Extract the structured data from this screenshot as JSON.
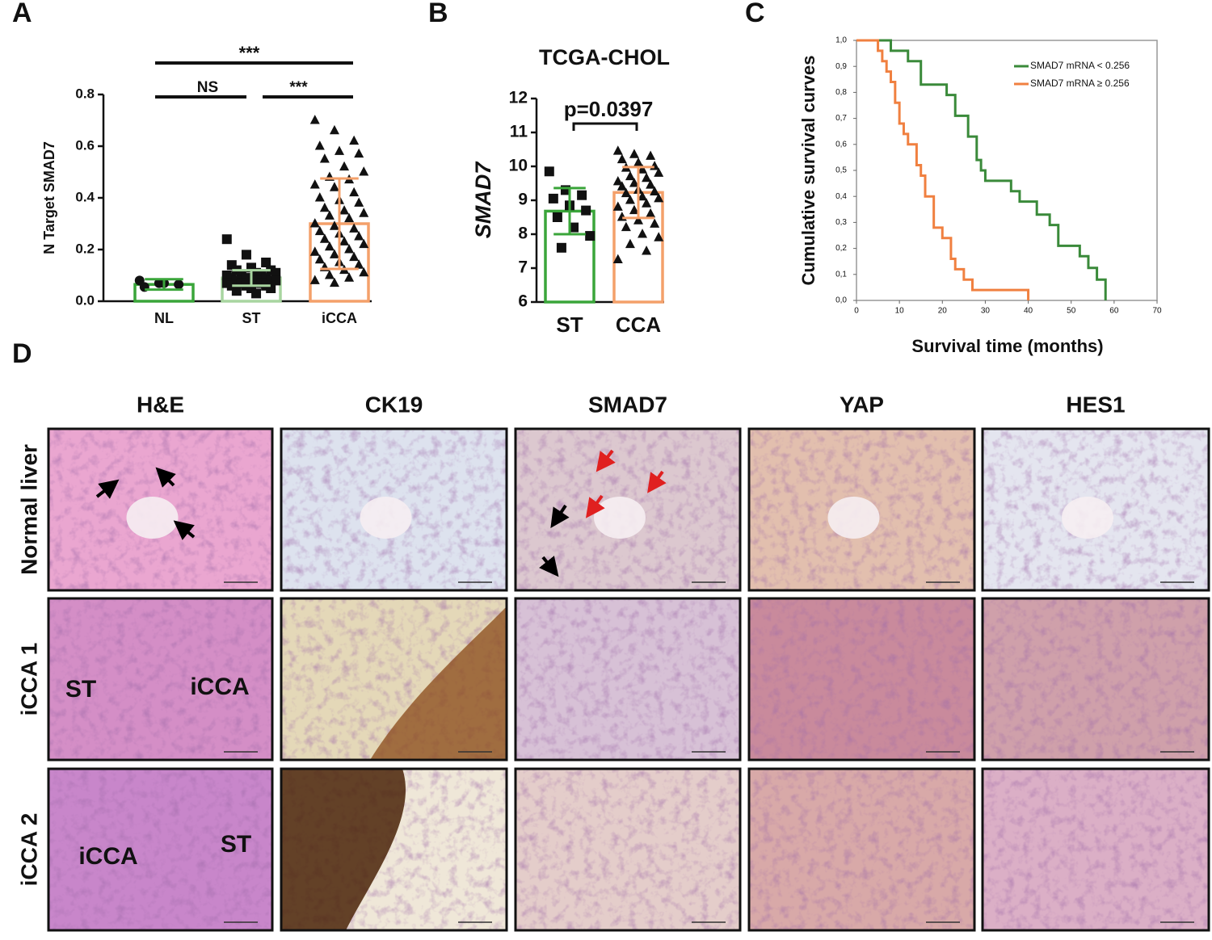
{
  "chart_data": [
    {
      "panel": "A",
      "type": "bar",
      "ylabel": "N Target SMAD7",
      "categories": [
        "NL",
        "ST",
        "iCCA"
      ],
      "values": [
        0.065,
        0.09,
        0.3
      ],
      "errors": [
        0.02,
        0.03,
        0.175
      ],
      "colors": [
        "#3aa53a",
        "#a8d5a0",
        "#f4a06a"
      ],
      "markers": [
        "circle",
        "square",
        "triangle"
      ],
      "points": [
        [
          0.08,
          0.07,
          0.065,
          0.055,
          0.07
        ],
        [
          0.24,
          0.18,
          0.15,
          0.14,
          0.13,
          0.12,
          0.12,
          0.11,
          0.11,
          0.1,
          0.1,
          0.1,
          0.09,
          0.09,
          0.09,
          0.09,
          0.08,
          0.08,
          0.08,
          0.08,
          0.07,
          0.07,
          0.07,
          0.06,
          0.06,
          0.06,
          0.05,
          0.05,
          0.04,
          0.03
        ],
        [
          0.7,
          0.66,
          0.62,
          0.6,
          0.58,
          0.57,
          0.55,
          0.52,
          0.5,
          0.48,
          0.47,
          0.45,
          0.44,
          0.42,
          0.4,
          0.39,
          0.38,
          0.36,
          0.35,
          0.34,
          0.33,
          0.32,
          0.3,
          0.29,
          0.28,
          0.27,
          0.26,
          0.25,
          0.24,
          0.23,
          0.22,
          0.21,
          0.2,
          0.19,
          0.18,
          0.17,
          0.16,
          0.15,
          0.14,
          0.13,
          0.12,
          0.11,
          0.1,
          0.09,
          0.08,
          0.07
        ]
      ],
      "ylim": [
        0,
        0.8
      ],
      "yticks": [
        {
          "value": 0,
          "label": "0.0"
        },
        0.2,
        0.4,
        0.6,
        0.8
      ],
      "annotations": [
        {
          "text": "***",
          "from": "NL",
          "to": "iCCA"
        },
        {
          "text": "NS",
          "from": "NL",
          "to": "ST"
        },
        {
          "text": "***",
          "from": "ST",
          "to": "iCCA"
        }
      ]
    },
    {
      "panel": "B",
      "type": "bar",
      "title": "TCGA-CHOL",
      "ylabel": "SMAD7",
      "categories": [
        "ST",
        "CCA"
      ],
      "values": [
        8.68,
        9.23
      ],
      "errors": [
        0.68,
        0.75
      ],
      "colors": [
        "#3aa53a",
        "#f4a06a"
      ],
      "markers": [
        "square",
        "triangle"
      ],
      "points": [
        [
          9.85,
          9.3,
          9.15,
          9.05,
          8.85,
          8.7,
          8.5,
          8.2,
          7.95,
          7.6
        ],
        [
          10.45,
          10.35,
          10.3,
          10.2,
          10.1,
          10.0,
          9.95,
          9.9,
          9.8,
          9.7,
          9.65,
          9.55,
          9.5,
          9.45,
          9.4,
          9.3,
          9.25,
          9.2,
          9.1,
          9.05,
          9.0,
          8.9,
          8.8,
          8.7,
          8.6,
          8.5,
          8.4,
          8.3,
          8.2,
          8.0,
          7.9,
          7.7,
          7.5,
          7.25
        ]
      ],
      "ylim": [
        6,
        12
      ],
      "yticks": [
        6,
        7,
        8,
        9,
        10,
        11,
        12
      ],
      "annotations": [
        {
          "text": "p=0.0397",
          "from": "ST",
          "to": "CCA"
        }
      ]
    },
    {
      "panel": "C",
      "type": "line",
      "step": true,
      "ylabel": "Cumulative survival curves",
      "xlabel": "Survival time (months)",
      "series": [
        {
          "name": "SMAD7 mRNA < 0.256",
          "color": "#3a8a3a",
          "x": [
            0,
            8,
            12,
            15,
            21,
            23,
            26,
            28,
            29,
            30,
            36,
            38,
            42,
            45,
            47,
            52,
            54,
            56,
            58
          ],
          "values": [
            1,
            0.96,
            0.92,
            0.83,
            0.79,
            0.71,
            0.63,
            0.54,
            0.5,
            0.46,
            0.42,
            0.38,
            0.33,
            0.29,
            0.21,
            0.17,
            0.125,
            0.08,
            0
          ]
        },
        {
          "name": "SMAD7 mRNA ≥ 0.256",
          "color": "#f08040",
          "x": [
            0,
            5,
            6,
            7,
            8,
            9,
            10,
            11,
            12,
            14,
            15,
            16,
            18,
            20,
            22,
            23,
            25,
            27,
            40
          ],
          "values": [
            1,
            0.96,
            0.92,
            0.88,
            0.84,
            0.76,
            0.68,
            0.64,
            0.6,
            0.52,
            0.48,
            0.4,
            0.28,
            0.24,
            0.16,
            0.12,
            0.08,
            0.04,
            0
          ]
        }
      ],
      "xlim": [
        0,
        70
      ],
      "xticks": [
        0,
        10,
        20,
        30,
        40,
        50,
        60,
        70
      ],
      "ylim": [
        0,
        1
      ],
      "yticks": [
        {
          "value": 0,
          "label": "0,0"
        },
        {
          "value": 0.1,
          "label": "0,1"
        },
        {
          "value": 0.2,
          "label": "0,2"
        },
        {
          "value": 0.3,
          "label": "0,3"
        },
        {
          "value": 0.4,
          "label": "0,4"
        },
        {
          "value": 0.5,
          "label": "0,5"
        },
        {
          "value": 0.6,
          "label": "0,6"
        },
        {
          "value": 0.7,
          "label": "0,7"
        },
        {
          "value": 0.8,
          "label": "0,8"
        },
        {
          "value": 0.9,
          "label": "0,9"
        },
        {
          "value": 1,
          "label": "1,0"
        }
      ],
      "legend": "upper right"
    }
  ],
  "panel_d": {
    "panel": "D",
    "columns": [
      "H&E",
      "CK19",
      "SMAD7",
      "YAP",
      "HES1"
    ],
    "rows": [
      {
        "label": "Normal liver"
      },
      {
        "label": "iCCA 1",
        "he_labels": [
          "ST",
          "iCCA"
        ]
      },
      {
        "label": "iCCA 2",
        "he_labels": [
          "iCCA",
          "ST"
        ]
      }
    ]
  }
}
